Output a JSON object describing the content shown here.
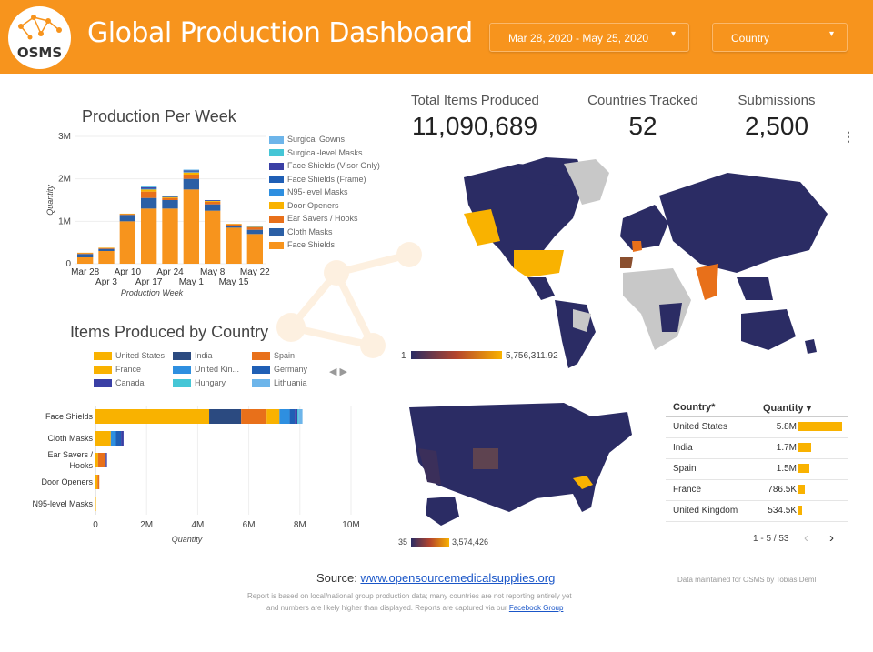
{
  "header": {
    "logo_text": "OSMS",
    "title": "Global Production Dashboard",
    "date_range": "Mar 28, 2020 - May 25, 2020",
    "country_filter": "Country"
  },
  "kpis": [
    {
      "label": "Total Items Produced",
      "value": "11,090,689"
    },
    {
      "label": "Countries Tracked",
      "value": "52"
    },
    {
      "label": "Submissions",
      "value": "2,500"
    }
  ],
  "colors": {
    "accent": "#f7941d",
    "face_shields": "#f7941d",
    "cloth_masks": "#2b5fa5",
    "ear_savers": "#e8701a",
    "door_openers": "#f9b200",
    "n95": "#2e8fe0",
    "face_shields_frame": "#1f5fb5",
    "face_shields_visor": "#3a3fa5",
    "surgical_masks": "#45c6d6",
    "surgical_gowns": "#6db5ea",
    "map_low": "#2b2c64",
    "map_high": "#f9b200"
  },
  "weekly_chart_data": {
    "type": "bar",
    "title": "Production Per Week",
    "xlabel": "Production Week",
    "ylabel": "Quantity",
    "ylim": [
      0,
      3000000
    ],
    "yticks": [
      "0",
      "1M",
      "2M",
      "3M"
    ],
    "categories": [
      "Mar 28",
      "Apr 3",
      "Apr 10",
      "Apr 17",
      "Apr 24",
      "May 1",
      "May 8",
      "May 15",
      "May 22"
    ],
    "series": [
      {
        "name": "Face Shields",
        "values": [
          150000,
          300000,
          1000000,
          1300000,
          1300000,
          1750000,
          1250000,
          850000,
          700000
        ]
      },
      {
        "name": "Cloth Masks",
        "values": [
          80000,
          50000,
          150000,
          250000,
          200000,
          250000,
          150000,
          50000,
          100000
        ]
      },
      {
        "name": "Ear Savers / Hooks",
        "values": [
          20000,
          20000,
          20000,
          150000,
          50000,
          100000,
          60000,
          30000,
          60000
        ]
      },
      {
        "name": "Door Openers",
        "values": [
          10000,
          10000,
          10000,
          50000,
          20000,
          50000,
          20000,
          10000,
          10000
        ]
      },
      {
        "name": "N95-level Masks",
        "values": [
          0,
          0,
          0,
          10000,
          0,
          10000,
          0,
          0,
          10000
        ]
      },
      {
        "name": "Face Shields (Frame)",
        "values": [
          0,
          0,
          0,
          20000,
          20000,
          20000,
          10000,
          0,
          10000
        ]
      },
      {
        "name": "Face Shields (Visor Only)",
        "values": [
          0,
          0,
          0,
          20000,
          10000,
          20000,
          10000,
          0,
          10000
        ]
      },
      {
        "name": "Surgical-level Masks",
        "values": [
          0,
          0,
          0,
          10000,
          0,
          10000,
          0,
          0,
          0
        ]
      },
      {
        "name": "Surgical Gowns",
        "values": [
          0,
          0,
          0,
          10000,
          0,
          10000,
          0,
          0,
          0
        ]
      }
    ],
    "legend": [
      "Surgical Gowns",
      "Surgical-level Masks",
      "Face Shields (Visor Only)",
      "Face Shields (Frame)",
      "N95-level Masks",
      "Door Openers",
      "Ear Savers / Hooks",
      "Cloth Masks",
      "Face Shields"
    ]
  },
  "country_chart_data": {
    "type": "bar",
    "title": "Items Produced by Country",
    "xlabel": "Quantity",
    "xlim": [
      0,
      10000000
    ],
    "xticks": [
      "0",
      "2M",
      "4M",
      "6M",
      "8M",
      "10M"
    ],
    "categories": [
      "Face Shields",
      "Cloth Masks",
      "Ear Savers / Hooks",
      "Door Openers",
      "N95-level Masks"
    ],
    "category_lines": [
      [
        "Face Shields"
      ],
      [
        "Cloth Masks"
      ],
      [
        "Ear Savers /",
        "Hooks"
      ],
      [
        "Door Openers"
      ],
      [
        "N95-level Masks"
      ]
    ],
    "legend": [
      "United States",
      "India",
      "Spain",
      "France",
      "United Kin...",
      "Germany",
      "Canada",
      "Hungary",
      "Lithuania"
    ],
    "series": [
      {
        "name": "United States",
        "values": [
          4450000,
          600000,
          100000,
          80000,
          20000
        ]
      },
      {
        "name": "India",
        "values": [
          1250000,
          0,
          0,
          0,
          0
        ]
      },
      {
        "name": "Spain",
        "values": [
          1000000,
          0,
          300000,
          70000,
          0
        ]
      },
      {
        "name": "France",
        "values": [
          500000,
          0,
          0,
          0,
          0
        ]
      },
      {
        "name": "United Kin...",
        "values": [
          400000,
          200000,
          0,
          0,
          0
        ]
      },
      {
        "name": "Germany",
        "values": [
          200000,
          200000,
          0,
          0,
          0
        ]
      },
      {
        "name": "Canada",
        "values": [
          100000,
          100000,
          50000,
          0,
          0
        ]
      },
      {
        "name": "Hungary",
        "values": [
          50000,
          0,
          0,
          0,
          0
        ]
      },
      {
        "name": "Lithuania",
        "values": [
          150000,
          0,
          0,
          0,
          0
        ]
      }
    ]
  },
  "world_map": {
    "legend_min": "1",
    "legend_max": "5,756,311.92"
  },
  "us_map": {
    "legend_min": "35",
    "legend_max": "3,574,426"
  },
  "country_table": {
    "col_country": "Country",
    "col_quantity": "Quantity",
    "rows": [
      {
        "country": "United States",
        "quantity": "5.8M",
        "value": 5.8
      },
      {
        "country": "India",
        "quantity": "1.7M",
        "value": 1.7
      },
      {
        "country": "Spain",
        "quantity": "1.5M",
        "value": 1.5
      },
      {
        "country": "France",
        "quantity": "786.5K",
        "value": 0.7865
      },
      {
        "country": "United Kingdom",
        "quantity": "534.5K",
        "value": 0.5345
      }
    ],
    "pagination": "1 - 5 / 53"
  },
  "footer": {
    "source_label": "Source:",
    "source_link": "www.opensourcemedicalsupplies.org",
    "maintainer": "Data maintained for OSMS by Tobias Deml",
    "note_line1": "Report is based on local/national group production data; many countries are not reporting entirely yet",
    "note_line2": "and numbers are likely higher than displayed. Reports are captured via our",
    "note_link": "Facebook Group"
  }
}
